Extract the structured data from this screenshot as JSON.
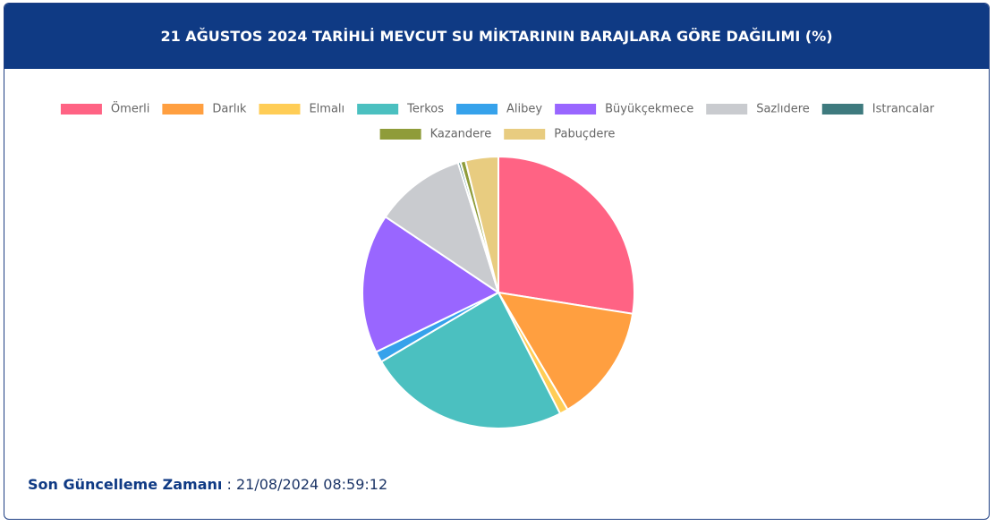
{
  "chart_data": {
    "type": "pie",
    "title": "21 AĞUSTOS 2024 TARİHLİ MEVCUT SU MİKTARININ BARAJLARA GÖRE DAĞILIMI (%)",
    "categories": [
      "Ömerli",
      "Darlık",
      "Elmalı",
      "Terkos",
      "Alibey",
      "Büyükçekmece",
      "Sazlıdere",
      "Istrancalar",
      "Kazandere",
      "Pabuçdere"
    ],
    "values": [
      27.5,
      14.0,
      1.0,
      24.0,
      1.3,
      16.6,
      10.8,
      0.3,
      0.6,
      3.9
    ],
    "colors": [
      "#ff6384",
      "#ff9f40",
      "#ffcd56",
      "#4bc0c0",
      "#36a2eb",
      "#9966ff",
      "#c9cbcf",
      "#3e7a7e",
      "#8f9c3a",
      "#e8cc80"
    ],
    "legend": "top"
  },
  "footer": {
    "label": "Son Güncelleme Zamanı",
    "value": ": 21/08/2024 08:59:12"
  }
}
